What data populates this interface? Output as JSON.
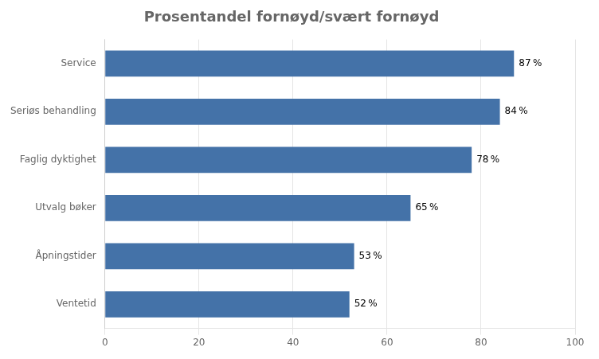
{
  "chart_data": {
    "type": "bar",
    "orientation": "horizontal",
    "title": "Prosentandel fornøyd/svært fornøyd",
    "categories": [
      "Ventetid",
      "Åpningstider",
      "Utvalg bøker",
      "Faglig dyktighet",
      "Seriøs behandling",
      "Service"
    ],
    "values": [
      52,
      53,
      65,
      78,
      84,
      87
    ],
    "value_labels": [
      "52 %",
      "53 %",
      "65 %",
      "78 %",
      "84 %",
      "87 %"
    ],
    "data_labels": true,
    "color": "#4472a8",
    "xlim": [
      0,
      100
    ],
    "xticks": [
      0,
      20,
      40,
      60,
      80,
      100
    ],
    "grid": true
  }
}
